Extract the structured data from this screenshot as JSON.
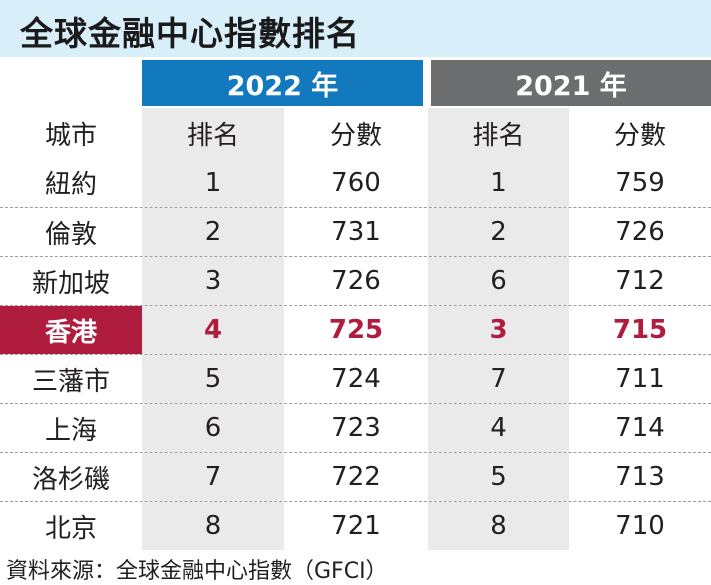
{
  "title": "全球金融中心指數排名",
  "years": {
    "y2022": "2022 年",
    "y2021": "2021 年"
  },
  "columns": [
    "城市",
    "排名",
    "分數",
    "排名",
    "分數"
  ],
  "rows": [
    {
      "city": "紐約",
      "rank2022": "1",
      "score2022": "760",
      "rank2021": "1",
      "score2021": "759"
    },
    {
      "city": "倫敦",
      "rank2022": "2",
      "score2022": "731",
      "rank2021": "2",
      "score2021": "726"
    },
    {
      "city": "新加坡",
      "rank2022": "3",
      "score2022": "726",
      "rank2021": "6",
      "score2021": "712"
    },
    {
      "city": "香港",
      "rank2022": "4",
      "score2022": "725",
      "rank2021": "3",
      "score2021": "715"
    },
    {
      "city": "三藩市",
      "rank2022": "5",
      "score2022": "724",
      "rank2021": "7",
      "score2021": "711"
    },
    {
      "city": "上海",
      "rank2022": "6",
      "score2022": "723",
      "rank2021": "4",
      "score2021": "714"
    },
    {
      "city": "洛杉磯",
      "rank2022": "7",
      "score2022": "722",
      "rank2021": "5",
      "score2021": "713"
    },
    {
      "city": "北京",
      "rank2022": "8",
      "score2022": "721",
      "rank2021": "8",
      "score2021": "710"
    }
  ],
  "highlight_city": "香港",
  "colors": {
    "title_bg": "#d8eff9",
    "year_2022": "#1279be",
    "year_2021": "#6d6e70",
    "highlight": "#b01c3d",
    "shade": "#eaeaeb"
  },
  "source": "資料來源：全球金融中心指數（GFCI）"
}
